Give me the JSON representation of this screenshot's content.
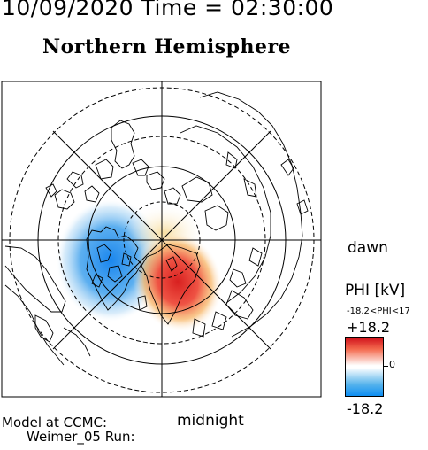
{
  "header": {
    "datetime": "10/09/2020 Time = 02:30:00",
    "hemisphere": "Northern Hemisphere"
  },
  "labels": {
    "dawn": "dawn",
    "midnight": "midnight"
  },
  "colorbar": {
    "title": "PHI [kV]",
    "range_text": "-18.2<PHI<17",
    "max_label": "+18.2",
    "zero_label": "0",
    "min_label": "-18.2",
    "colors": {
      "positive": "#d0101a",
      "neutral": "#ffffff",
      "negative": "#0e8ef2"
    }
  },
  "footer": {
    "model": "Model at CCMC:",
    "run": "Weimer_05 Run:"
  }
}
